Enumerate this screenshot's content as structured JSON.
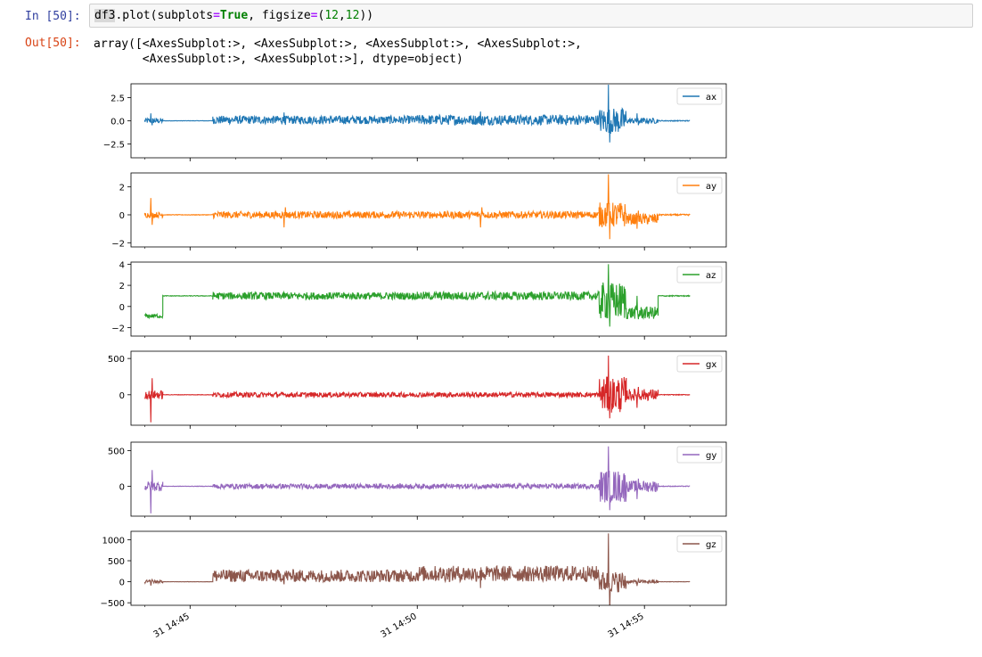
{
  "cell": {
    "in_prompt": "In [50]:",
    "out_prompt": "Out[50]:",
    "code": {
      "obj": "df3",
      "method": ".plot(subplots",
      "eq1": "=",
      "kw_true": "True",
      "mid": ", figsize",
      "eq2": "=",
      "tuple_open": "(",
      "n1": "12",
      "comma": ",",
      "n2": "12",
      "close": "))"
    },
    "output_lines": [
      "array([<AxesSubplot:>, <AxesSubplot:>, <AxesSubplot:>, <AxesSubplot:>,",
      "       <AxesSubplot:>, <AxesSubplot:>], dtype=object)"
    ]
  },
  "chart_data": {
    "type": "line",
    "shared_x": true,
    "x_tick_labels": [
      "31 14:45",
      "31 14:50",
      "31 14:55"
    ],
    "x_tick_minutes": [
      45,
      50,
      55
    ],
    "x_range_minutes": [
      43.7,
      56.8
    ],
    "legend_placement": "top-right",
    "grid": false,
    "subplots": [
      {
        "name": "ax",
        "color": "#1f77b4",
        "ylim": [
          -4.0,
          4.0
        ],
        "yticks": [
          2.5,
          0.0,
          -2.5
        ],
        "ytick_labels": [
          "2.5",
          "0.0",
          "−2.5"
        ],
        "segments": [
          {
            "start": 44.0,
            "end": 44.4,
            "base": 0.0,
            "amp": 0.3,
            "dev": 0.8
          },
          {
            "start": 44.4,
            "end": 45.5,
            "base": 0.0,
            "amp": 0.02,
            "dev": 0.0
          },
          {
            "start": 45.5,
            "end": 50.0,
            "base": 0.1,
            "amp": 0.45,
            "dev": 0.9
          },
          {
            "start": 50.0,
            "end": 54.0,
            "base": 0.1,
            "amp": 0.55,
            "dev": 1.0
          },
          {
            "start": 54.0,
            "end": 54.6,
            "base": 0.0,
            "amp": 1.4,
            "dev": 3.9
          },
          {
            "start": 54.6,
            "end": 55.3,
            "base": 0.0,
            "amp": 0.3,
            "dev": 0.8
          },
          {
            "start": 55.3,
            "end": 56.0,
            "base": 0.0,
            "amp": 0.05,
            "dev": 0.0
          }
        ]
      },
      {
        "name": "ay",
        "color": "#ff7f0e",
        "ylim": [
          -2.3,
          3.0
        ],
        "yticks": [
          2,
          0,
          -2
        ],
        "ytick_labels": [
          "2",
          "0",
          "−2"
        ],
        "segments": [
          {
            "start": 44.0,
            "end": 44.4,
            "base": 0.0,
            "amp": 0.2,
            "dev": 1.2
          },
          {
            "start": 44.4,
            "end": 45.5,
            "base": 0.0,
            "amp": 0.02,
            "dev": 0.0
          },
          {
            "start": 45.5,
            "end": 50.0,
            "base": 0.0,
            "amp": 0.25,
            "dev": -0.9
          },
          {
            "start": 50.0,
            "end": 54.0,
            "base": 0.0,
            "amp": 0.25,
            "dev": -0.9
          },
          {
            "start": 54.0,
            "end": 54.6,
            "base": 0.0,
            "amp": 0.9,
            "dev": 2.9
          },
          {
            "start": 54.6,
            "end": 55.3,
            "base": -0.3,
            "amp": 0.4,
            "dev": -1.0
          },
          {
            "start": 55.3,
            "end": 56.0,
            "base": 0.0,
            "amp": 0.05,
            "dev": 0.0
          }
        ]
      },
      {
        "name": "az",
        "color": "#2ca02c",
        "ylim": [
          -2.8,
          4.2
        ],
        "yticks": [
          4,
          2,
          0,
          -2
        ],
        "ytick_labels": [
          "4",
          "2",
          "0",
          "−2"
        ],
        "segments": [
          {
            "start": 44.0,
            "end": 44.4,
            "base": -0.9,
            "amp": 0.2,
            "dev": 0.0
          },
          {
            "start": 44.4,
            "end": 45.5,
            "base": 1.0,
            "amp": 0.03,
            "dev": 0.0
          },
          {
            "start": 45.5,
            "end": 50.0,
            "base": 1.0,
            "amp": 0.35,
            "dev": 0.0
          },
          {
            "start": 50.0,
            "end": 54.0,
            "base": 1.0,
            "amp": 0.4,
            "dev": 0.0
          },
          {
            "start": 54.0,
            "end": 54.6,
            "base": 0.5,
            "amp": 1.8,
            "dev": 4.0
          },
          {
            "start": 54.6,
            "end": 55.3,
            "base": -0.6,
            "amp": 0.6,
            "dev": 1.0
          },
          {
            "start": 55.3,
            "end": 56.0,
            "base": 1.0,
            "amp": 0.05,
            "dev": 0.0
          }
        ]
      },
      {
        "name": "gx",
        "color": "#d62728",
        "ylim": [
          -420,
          600
        ],
        "yticks": [
          500,
          0
        ],
        "ytick_labels": [
          "500",
          "0"
        ],
        "segments": [
          {
            "start": 44.0,
            "end": 44.4,
            "base": 0,
            "amp": 60,
            "dev": -380
          },
          {
            "start": 44.4,
            "end": 45.5,
            "base": 0,
            "amp": 3,
            "dev": 0
          },
          {
            "start": 45.5,
            "end": 50.0,
            "base": 0,
            "amp": 35,
            "dev": 0
          },
          {
            "start": 50.0,
            "end": 54.0,
            "base": 0,
            "amp": 35,
            "dev": 0
          },
          {
            "start": 54.0,
            "end": 54.6,
            "base": 0,
            "amp": 250,
            "dev": 540
          },
          {
            "start": 54.6,
            "end": 55.3,
            "base": 0,
            "amp": 80,
            "dev": -180
          },
          {
            "start": 55.3,
            "end": 56.0,
            "base": 0,
            "amp": 5,
            "dev": 0
          }
        ]
      },
      {
        "name": "gy",
        "color": "#9467bd",
        "ylim": [
          -420,
          620
        ],
        "yticks": [
          500,
          0
        ],
        "ytick_labels": [
          "500",
          "0"
        ],
        "segments": [
          {
            "start": 44.0,
            "end": 44.4,
            "base": 0,
            "amp": 70,
            "dev": -380
          },
          {
            "start": 44.4,
            "end": 45.5,
            "base": 0,
            "amp": 3,
            "dev": 0
          },
          {
            "start": 45.5,
            "end": 50.0,
            "base": 0,
            "amp": 35,
            "dev": 0
          },
          {
            "start": 50.0,
            "end": 54.0,
            "base": 0,
            "amp": 35,
            "dev": 0
          },
          {
            "start": 54.0,
            "end": 54.6,
            "base": 0,
            "amp": 230,
            "dev": 560
          },
          {
            "start": 54.6,
            "end": 55.3,
            "base": 0,
            "amp": 80,
            "dev": -180
          },
          {
            "start": 55.3,
            "end": 56.0,
            "base": 0,
            "amp": 5,
            "dev": 0
          }
        ]
      },
      {
        "name": "gz",
        "color": "#8c564b",
        "ylim": [
          -560,
          1200
        ],
        "yticks": [
          1000,
          500,
          0,
          -500
        ],
        "ytick_labels": [
          "1000",
          "500",
          "0",
          "−500"
        ],
        "segments": [
          {
            "start": 44.0,
            "end": 44.4,
            "base": 0,
            "amp": 40,
            "dev": -90
          },
          {
            "start": 44.4,
            "end": 45.5,
            "base": 0,
            "amp": 3,
            "dev": 0
          },
          {
            "start": 45.5,
            "end": 50.0,
            "base": 140,
            "amp": 150,
            "dev": -60
          },
          {
            "start": 50.0,
            "end": 54.0,
            "base": 190,
            "amp": 190,
            "dev": -150
          },
          {
            "start": 54.0,
            "end": 54.6,
            "base": 0,
            "amp": 250,
            "dev": 1150
          },
          {
            "start": 54.6,
            "end": 55.3,
            "base": 0,
            "amp": 40,
            "dev": -100
          },
          {
            "start": 55.3,
            "end": 56.0,
            "base": 0,
            "amp": 5,
            "dev": 0
          }
        ]
      }
    ]
  }
}
